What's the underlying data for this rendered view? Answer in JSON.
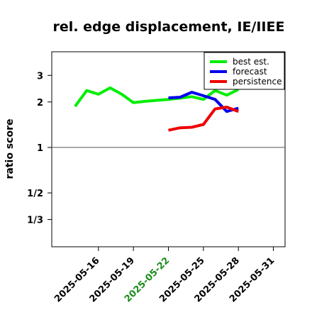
{
  "chart_data": {
    "type": "line",
    "title": "rel. edge displacement, IE/IIEE",
    "xlabel": "",
    "ylabel": "ratio score",
    "x_ticks": [
      "2025-05-16",
      "2025-05-19",
      "2025-05-22",
      "2025-05-25",
      "2025-05-28",
      "2025-05-31"
    ],
    "x_tick_colors": [
      "#000000",
      "#000000",
      "#1a8c1a",
      "#000000",
      "#000000",
      "#000000"
    ],
    "y_scale": "log2",
    "y_ticks": [
      "1/3",
      "1/2",
      "1",
      "2",
      "3"
    ],
    "y_tick_values": [
      0.3333,
      0.5,
      1,
      2,
      3
    ],
    "ylim": [
      0.22,
      4.3
    ],
    "xlim": [
      "2025-05-12",
      "2025-06-01"
    ],
    "reference_line": 1,
    "legend_position": "top-right",
    "series": [
      {
        "name": "best est.",
        "color": "#00ee00",
        "points": [
          [
            "2025-05-14",
            1.87
          ],
          [
            "2025-05-15",
            2.38
          ],
          [
            "2025-05-16",
            2.25
          ],
          [
            "2025-05-17",
            2.48
          ],
          [
            "2025-05-18",
            2.25
          ],
          [
            "2025-05-19",
            1.98
          ],
          [
            "2025-05-20",
            2.02
          ],
          [
            "2025-05-21",
            2.05
          ],
          [
            "2025-05-22",
            2.08
          ],
          [
            "2025-05-23",
            2.12
          ],
          [
            "2025-05-24",
            2.17
          ],
          [
            "2025-05-25",
            2.08
          ],
          [
            "2025-05-26",
            2.38
          ],
          [
            "2025-05-27",
            2.22
          ],
          [
            "2025-05-28",
            2.42
          ]
        ]
      },
      {
        "name": "forecast",
        "color": "#0000ee",
        "points": [
          [
            "2025-05-22",
            2.13
          ],
          [
            "2025-05-23",
            2.15
          ],
          [
            "2025-05-24",
            2.32
          ],
          [
            "2025-05-25",
            2.2
          ],
          [
            "2025-05-26",
            2.08
          ],
          [
            "2025-05-27",
            1.73
          ],
          [
            "2025-05-28",
            1.82
          ]
        ]
      },
      {
        "name": "persistence",
        "color": "#ee0000",
        "points": [
          [
            "2025-05-22",
            1.3
          ],
          [
            "2025-05-23",
            1.35
          ],
          [
            "2025-05-24",
            1.36
          ],
          [
            "2025-05-25",
            1.42
          ],
          [
            "2025-05-26",
            1.8
          ],
          [
            "2025-05-27",
            1.85
          ],
          [
            "2025-05-28",
            1.73
          ]
        ]
      }
    ]
  }
}
